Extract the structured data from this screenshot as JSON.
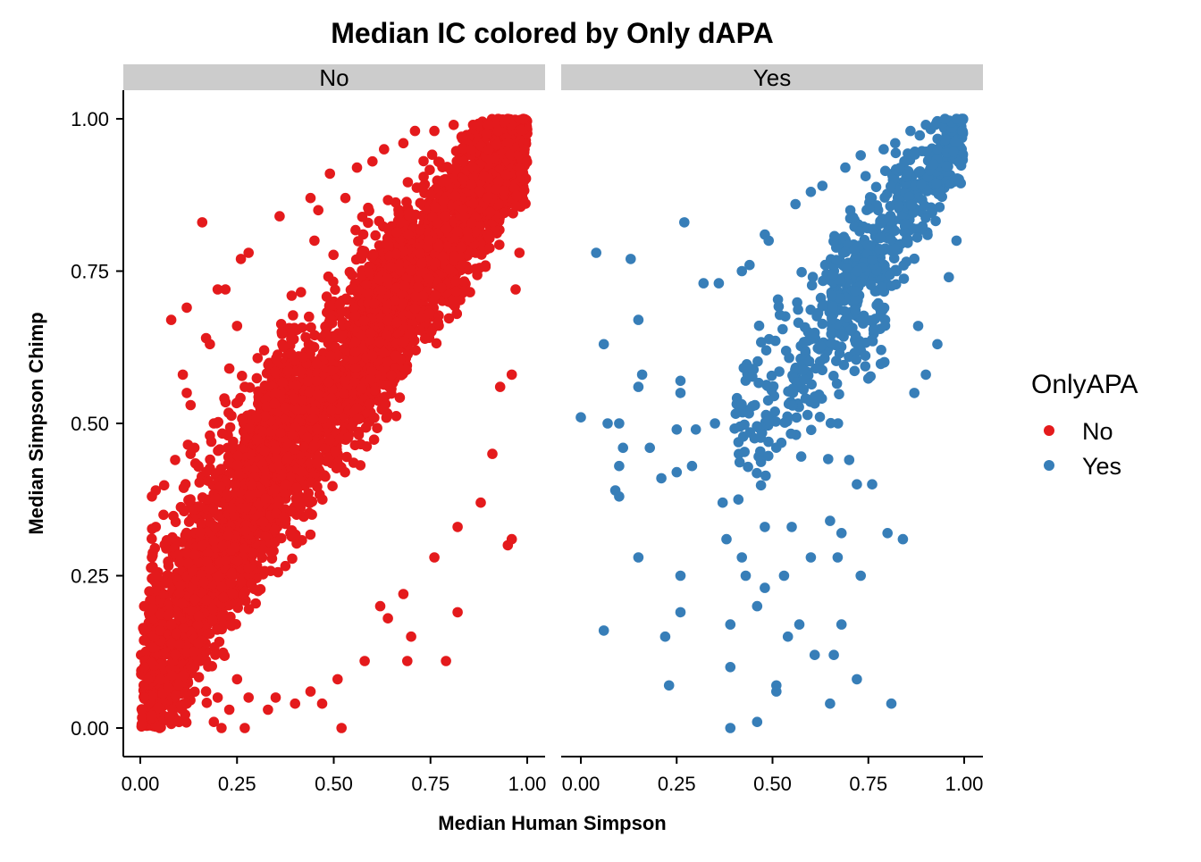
{
  "chart_data": {
    "type": "scatter",
    "title": "Median IC colored by Only dAPA",
    "xlabel": "Median Human Simpson",
    "ylabel": "Median Simpson Chimp",
    "xlim": [
      0,
      1
    ],
    "ylim": [
      0,
      1
    ],
    "x_ticks": [
      "0.00",
      "0.25",
      "0.50",
      "0.75",
      "1.00"
    ],
    "y_ticks": [
      "0.00",
      "0.25",
      "0.50",
      "0.75",
      "1.00"
    ],
    "grid": false,
    "facets": [
      "No",
      "Yes"
    ],
    "legend": {
      "title": "OnlyAPA",
      "position": "right",
      "entries": [
        "No",
        "Yes"
      ]
    },
    "colors": {
      "No": "#E41A1C",
      "Yes": "#377EB8"
    },
    "series": [
      {
        "name": "No",
        "facet": "No",
        "points": [
          [
            0.16,
            0.83
          ],
          [
            0.08,
            0.67
          ],
          [
            0.12,
            0.69
          ],
          [
            0.28,
            0.78
          ],
          [
            0.26,
            0.77
          ],
          [
            0.49,
            0.91
          ],
          [
            0.56,
            0.92
          ],
          [
            0.44,
            0.87
          ],
          [
            0.53,
            0.87
          ],
          [
            0.46,
            0.85
          ],
          [
            0.36,
            0.84
          ],
          [
            0.45,
            0.8
          ],
          [
            0.2,
            0.72
          ],
          [
            0.22,
            0.72
          ],
          [
            0.17,
            0.64
          ],
          [
            0.18,
            0.63
          ],
          [
            0.25,
            0.66
          ],
          [
            0.11,
            0.58
          ],
          [
            0.12,
            0.55
          ],
          [
            0.13,
            0.53
          ],
          [
            0.09,
            0.44
          ],
          [
            0.14,
            0.46
          ],
          [
            0.03,
            0.38
          ],
          [
            0.04,
            0.39
          ],
          [
            0.06,
            0.35
          ],
          [
            0.04,
            0.33
          ],
          [
            0.13,
            0.45
          ],
          [
            0.15,
            0.43
          ],
          [
            0.19,
            0.5
          ],
          [
            0.18,
            0.48
          ],
          [
            0.24,
            0.47
          ],
          [
            0.23,
            0.59
          ],
          [
            0.27,
            0.56
          ],
          [
            0.3,
            0.51
          ],
          [
            0.32,
            0.62
          ],
          [
            0.35,
            0.55
          ],
          [
            0.82,
            0.19
          ],
          [
            0.7,
            0.15
          ],
          [
            0.79,
            0.11
          ],
          [
            0.69,
            0.11
          ],
          [
            0.62,
            0.2
          ],
          [
            0.52,
            0.0
          ],
          [
            0.27,
            0.0
          ],
          [
            0.21,
            0.0
          ],
          [
            0.19,
            0.01
          ],
          [
            0.05,
            0.0
          ],
          [
            0.03,
            0.02
          ],
          [
            0.01,
            0.05
          ],
          [
            0.01,
            0.1
          ],
          [
            0.01,
            0.16
          ],
          [
            0.01,
            0.2
          ],
          [
            0.02,
            0.08
          ],
          [
            0.03,
            0.28
          ],
          [
            0.04,
            0.25
          ],
          [
            0.06,
            0.22
          ],
          [
            0.08,
            0.17
          ],
          [
            0.09,
            0.12
          ],
          [
            0.1,
            0.07
          ],
          [
            0.12,
            0.04
          ],
          [
            0.14,
            0.1
          ],
          [
            0.15,
            0.14
          ],
          [
            0.17,
            0.06
          ],
          [
            0.2,
            0.05
          ],
          [
            0.23,
            0.03
          ],
          [
            0.25,
            0.08
          ],
          [
            0.28,
            0.05
          ],
          [
            0.33,
            0.03
          ],
          [
            0.35,
            0.05
          ],
          [
            0.4,
            0.04
          ],
          [
            0.44,
            0.06
          ],
          [
            0.47,
            0.04
          ],
          [
            0.51,
            0.08
          ],
          [
            0.58,
            0.11
          ],
          [
            0.64,
            0.18
          ],
          [
            0.68,
            0.22
          ],
          [
            0.76,
            0.28
          ],
          [
            0.82,
            0.33
          ],
          [
            0.88,
            0.37
          ],
          [
            0.91,
            0.45
          ],
          [
            0.95,
            0.3
          ],
          [
            0.96,
            0.31
          ],
          [
            0.93,
            0.56
          ],
          [
            0.96,
            0.58
          ],
          [
            0.97,
            0.72
          ],
          [
            0.98,
            0.78
          ],
          [
            0.6,
            0.93
          ],
          [
            0.63,
            0.95
          ],
          [
            0.68,
            0.96
          ],
          [
            0.71,
            0.98
          ],
          [
            0.76,
            0.98
          ],
          [
            0.81,
            0.99
          ],
          [
            0.86,
            0.99
          ],
          [
            0.9,
            0.99
          ],
          [
            0.95,
            1.0
          ],
          [
            0.99,
            1.0
          ]
        ],
        "bands": [
          {
            "x": [
              0.02,
              0.4
            ],
            "y_center": [
              0.1,
              0.52
            ],
            "width": 0.3,
            "n": 1100
          },
          {
            "x": [
              0.3,
              0.7
            ],
            "y_center": [
              0.4,
              0.73
            ],
            "width": 0.26,
            "n": 1400
          },
          {
            "x": [
              0.55,
              1.0
            ],
            "y_center": [
              0.62,
              0.98
            ],
            "width": 0.2,
            "n": 2400
          },
          {
            "x": [
              0.0,
              0.3
            ],
            "y_center": [
              0.05,
              0.35
            ],
            "width": 0.2,
            "n": 500
          }
        ]
      },
      {
        "name": "Yes",
        "facet": "Yes",
        "points": [
          [
            0.04,
            0.78
          ],
          [
            0.13,
            0.77
          ],
          [
            0.27,
            0.83
          ],
          [
            0.15,
            0.67
          ],
          [
            0.06,
            0.63
          ],
          [
            0.0,
            0.51
          ],
          [
            0.07,
            0.5
          ],
          [
            0.1,
            0.5
          ],
          [
            0.11,
            0.46
          ],
          [
            0.18,
            0.46
          ],
          [
            0.16,
            0.58
          ],
          [
            0.15,
            0.56
          ],
          [
            0.1,
            0.43
          ],
          [
            0.09,
            0.39
          ],
          [
            0.1,
            0.38
          ],
          [
            0.21,
            0.41
          ],
          [
            0.25,
            0.42
          ],
          [
            0.29,
            0.43
          ],
          [
            0.26,
            0.57
          ],
          [
            0.26,
            0.55
          ],
          [
            0.25,
            0.49
          ],
          [
            0.3,
            0.49
          ],
          [
            0.15,
            0.28
          ],
          [
            0.06,
            0.16
          ],
          [
            0.22,
            0.15
          ],
          [
            0.26,
            0.25
          ],
          [
            0.26,
            0.19
          ],
          [
            0.23,
            0.07
          ],
          [
            0.39,
            0.0
          ],
          [
            0.46,
            0.01
          ],
          [
            0.39,
            0.1
          ],
          [
            0.39,
            0.17
          ],
          [
            0.51,
            0.06
          ],
          [
            0.51,
            0.07
          ],
          [
            0.65,
            0.04
          ],
          [
            0.81,
            0.04
          ],
          [
            0.72,
            0.08
          ],
          [
            0.68,
            0.17
          ],
          [
            0.61,
            0.12
          ],
          [
            0.66,
            0.12
          ],
          [
            0.54,
            0.15
          ],
          [
            0.57,
            0.17
          ],
          [
            0.46,
            0.2
          ],
          [
            0.48,
            0.23
          ],
          [
            0.43,
            0.25
          ],
          [
            0.53,
            0.25
          ],
          [
            0.38,
            0.31
          ],
          [
            0.42,
            0.28
          ],
          [
            0.48,
            0.33
          ],
          [
            0.55,
            0.33
          ],
          [
            0.6,
            0.28
          ],
          [
            0.65,
            0.34
          ],
          [
            0.68,
            0.32
          ],
          [
            0.73,
            0.25
          ],
          [
            0.67,
            0.28
          ],
          [
            0.8,
            0.32
          ],
          [
            0.84,
            0.31
          ],
          [
            0.37,
            0.37
          ],
          [
            0.35,
            0.5
          ],
          [
            0.32,
            0.73
          ],
          [
            0.36,
            0.73
          ],
          [
            0.42,
            0.75
          ],
          [
            0.44,
            0.76
          ],
          [
            0.48,
            0.81
          ],
          [
            0.49,
            0.8
          ],
          [
            0.56,
            0.86
          ],
          [
            0.6,
            0.88
          ],
          [
            0.63,
            0.89
          ],
          [
            0.69,
            0.92
          ],
          [
            0.73,
            0.94
          ],
          [
            0.79,
            0.95
          ],
          [
            0.82,
            0.96
          ],
          [
            0.86,
            0.98
          ],
          [
            0.9,
            0.99
          ],
          [
            0.95,
            1.0
          ],
          [
            0.98,
            1.0
          ],
          [
            0.76,
            0.4
          ],
          [
            0.72,
            0.4
          ],
          [
            0.7,
            0.44
          ],
          [
            0.93,
            0.63
          ],
          [
            0.9,
            0.58
          ],
          [
            0.88,
            0.66
          ],
          [
            0.87,
            0.55
          ],
          [
            0.96,
            0.74
          ],
          [
            0.98,
            0.8
          ]
        ],
        "bands": [
          {
            "x": [
              0.4,
              0.8
            ],
            "y_center": [
              0.5,
              0.72
            ],
            "width": 0.22,
            "n": 260
          },
          {
            "x": [
              0.65,
              1.0
            ],
            "y_center": [
              0.7,
              0.98
            ],
            "width": 0.16,
            "n": 420
          }
        ]
      }
    ]
  }
}
